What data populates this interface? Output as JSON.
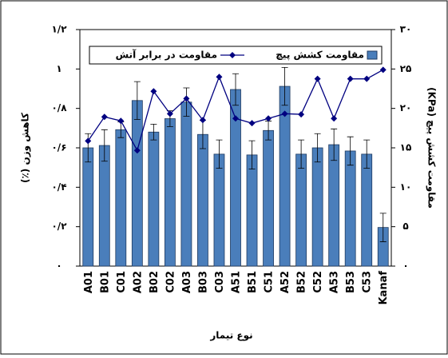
{
  "chart_data": {
    "type": "bar-line",
    "categories": [
      "A01",
      "B01",
      "C01",
      "A02",
      "B02",
      "C02",
      "A03",
      "B03",
      "C03",
      "A51",
      "B51",
      "C51",
      "A52",
      "B52",
      "C52",
      "A53",
      "B53",
      "C53",
      "Kanaf"
    ],
    "series": [
      {
        "name": "مقاومت کشش پیچ",
        "type": "bar",
        "axis": "y2",
        "color": "#4a7ebb",
        "values": [
          15,
          15.3,
          17.3,
          21,
          17,
          18.7,
          20.8,
          16.7,
          14.2,
          22.4,
          14.1,
          17.2,
          22.8,
          14.2,
          15,
          15.4,
          14.6,
          14.2,
          4.9
        ],
        "errors": [
          1.8,
          2,
          1,
          2.4,
          1,
          1,
          1.8,
          1.8,
          1.8,
          2,
          1.8,
          1.2,
          2.4,
          1.8,
          1.8,
          2,
          1.8,
          1.8,
          1.8
        ]
      },
      {
        "name": "مقاومت در برابر آتش",
        "type": "line",
        "axis": "y",
        "color": "#000080",
        "values": [
          0.635,
          0.757,
          0.737,
          0.587,
          0.887,
          0.773,
          0.85,
          0.741,
          0.96,
          0.749,
          0.725,
          0.749,
          0.773,
          0.77,
          0.95,
          0.749,
          0.95,
          0.95,
          0.996
        ]
      }
    ],
    "ylabel": "کاهش وزن (٪)",
    "y2label": "مقاومت کشش پیچ (KPa)",
    "xlabel": "نوع تیمار",
    "ylim": [
      0,
      1.2
    ],
    "yticks": [
      {
        "value": 0,
        "label": "۰"
      },
      {
        "value": 0.2,
        "label": "۰/۲"
      },
      {
        "value": 0.4,
        "label": "۰/۴"
      },
      {
        "value": 0.6,
        "label": "۰/۶"
      },
      {
        "value": 0.8,
        "label": "۰/۸"
      },
      {
        "value": 1,
        "label": "۱"
      },
      {
        "value": 1.2,
        "label": "۱/۲"
      }
    ],
    "y2lim": [
      0,
      30
    ],
    "y2ticks": [
      {
        "value": 0,
        "label": "۰"
      },
      {
        "value": 5,
        "label": "۵"
      },
      {
        "value": 10,
        "label": "۱۰"
      },
      {
        "value": 15,
        "label": "۱۵"
      },
      {
        "value": 20,
        "label": "۲۰"
      },
      {
        "value": 25,
        "label": "۲۵"
      },
      {
        "value": 30,
        "label": "۳۰"
      }
    ],
    "legend": "top"
  }
}
